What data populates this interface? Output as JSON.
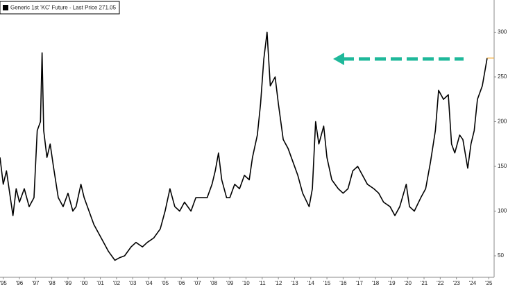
{
  "chart_data": {
    "type": "line",
    "series": [
      {
        "name": "Generic 1st 'KC' Future - Last Price 271.05",
        "color": "#000000",
        "x": [
          1994.8,
          1995.0,
          1995.2,
          1995.4,
          1995.6,
          1995.8,
          1996.0,
          1996.3,
          1996.6,
          1996.9,
          1997.1,
          1997.3,
          1997.4,
          1997.5,
          1997.7,
          1997.9,
          1998.1,
          1998.4,
          1998.7,
          1999.0,
          1999.3,
          1999.5,
          1999.8,
          2000.0,
          2000.3,
          2000.6,
          2000.9,
          2001.2,
          2001.5,
          2001.9,
          2002.2,
          2002.5,
          2002.9,
          2003.2,
          2003.6,
          2003.9,
          2004.3,
          2004.7,
          2005.0,
          2005.3,
          2005.6,
          2005.9,
          2006.2,
          2006.6,
          2006.9,
          2007.2,
          2007.6,
          2007.9,
          2008.1,
          2008.3,
          2008.5,
          2008.8,
          2009.0,
          2009.3,
          2009.6,
          2009.9,
          2010.2,
          2010.4,
          2010.7,
          2010.9,
          2011.1,
          2011.3,
          2011.5,
          2011.8,
          2012.0,
          2012.3,
          2012.6,
          2012.9,
          2013.2,
          2013.5,
          2013.9,
          2014.1,
          2014.3,
          2014.5,
          2014.8,
          2015.0,
          2015.3,
          2015.7,
          2016.0,
          2016.3,
          2016.6,
          2016.9,
          2017.2,
          2017.5,
          2017.9,
          2018.2,
          2018.5,
          2018.9,
          2019.2,
          2019.5,
          2019.9,
          2020.1,
          2020.4,
          2020.8,
          2021.1,
          2021.4,
          2021.7,
          2021.9,
          2022.2,
          2022.5,
          2022.7,
          2022.9,
          2023.2,
          2023.4,
          2023.7,
          2023.9,
          2024.1,
          2024.3,
          2024.6,
          2024.9
        ],
        "values": [
          160,
          130,
          145,
          120,
          95,
          125,
          110,
          125,
          105,
          115,
          190,
          200,
          277,
          190,
          160,
          175,
          150,
          115,
          105,
          120,
          100,
          105,
          130,
          115,
          100,
          85,
          75,
          65,
          55,
          45,
          48,
          50,
          60,
          65,
          60,
          65,
          70,
          80,
          100,
          125,
          105,
          100,
          110,
          100,
          115,
          115,
          115,
          130,
          145,
          165,
          135,
          115,
          115,
          130,
          125,
          140,
          135,
          160,
          185,
          220,
          270,
          300,
          240,
          250,
          220,
          180,
          170,
          155,
          140,
          120,
          105,
          125,
          200,
          175,
          195,
          160,
          135,
          125,
          120,
          125,
          145,
          150,
          140,
          130,
          125,
          120,
          110,
          105,
          95,
          105,
          130,
          105,
          100,
          115,
          125,
          155,
          190,
          235,
          225,
          230,
          175,
          165,
          185,
          180,
          148,
          175,
          190,
          225,
          240,
          271.05
        ]
      }
    ],
    "last_price_color": "#f5a623",
    "annotation_color": "#1fb89a",
    "xlim": [
      1994.8,
      2025.33
    ],
    "xticks": [
      {
        "value": 1995,
        "label": "'95"
      },
      {
        "value": 1996,
        "label": "'96"
      },
      {
        "value": 1997,
        "label": "'97"
      },
      {
        "value": 1998,
        "label": "'98"
      },
      {
        "value": 1999,
        "label": "'99"
      },
      {
        "value": 2000,
        "label": "'00"
      },
      {
        "value": 2001,
        "label": "'01"
      },
      {
        "value": 2002,
        "label": "'02"
      },
      {
        "value": 2003,
        "label": "'03"
      },
      {
        "value": 2004,
        "label": "'04"
      },
      {
        "value": 2005,
        "label": "'05"
      },
      {
        "value": 2006,
        "label": "'06"
      },
      {
        "value": 2007,
        "label": "'07"
      },
      {
        "value": 2008,
        "label": "'08"
      },
      {
        "value": 2009,
        "label": "'09"
      },
      {
        "value": 2010,
        "label": "'10"
      },
      {
        "value": 2011,
        "label": "'11"
      },
      {
        "value": 2012,
        "label": "'12"
      },
      {
        "value": 2013,
        "label": "'13"
      },
      {
        "value": 2014,
        "label": "'14"
      },
      {
        "value": 2015,
        "label": "'15"
      },
      {
        "value": 2016,
        "label": "'16"
      },
      {
        "value": 2017,
        "label": "'17"
      },
      {
        "value": 2018,
        "label": "'18"
      },
      {
        "value": 2019,
        "label": "'19"
      },
      {
        "value": 2020,
        "label": "'20"
      },
      {
        "value": 2021,
        "label": "'21"
      },
      {
        "value": 2022,
        "label": "'22"
      },
      {
        "value": 2023,
        "label": "'23"
      },
      {
        "value": 2024,
        "label": "'24"
      },
      {
        "value": 2025,
        "label": "'25"
      }
    ],
    "ylim": [
      26,
      336
    ],
    "yticks": [
      50,
      100,
      150,
      200,
      250,
      300
    ]
  }
}
